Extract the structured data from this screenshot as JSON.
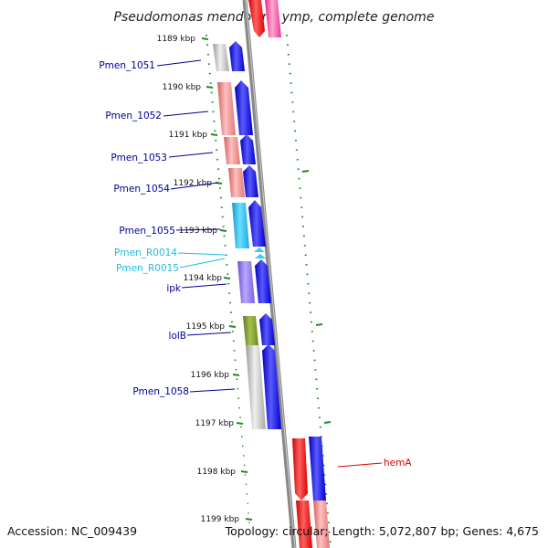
{
  "title": "Pseudomonas mendocina ymp, complete genome",
  "footer": {
    "accession": "Accession: NC_009439",
    "topology": "Topology: circular; Length: 5,072,807 bp; Genes: 4,675"
  },
  "colors": {
    "cds": "#0000ee",
    "rrna_trna": "#33ccff",
    "label_dark": "#000099",
    "label_light": "#22bbdd",
    "label_red": "#dd0000",
    "tick": "#228b22",
    "backbone": "#888888"
  },
  "ticks": [
    "1189 kbp",
    "1190 kbp",
    "1191 kbp",
    "1192 kbp",
    "1193 kbp",
    "1194 kbp",
    "1195 kbp",
    "1196 kbp",
    "1197 kbp",
    "1198 kbp",
    "1199 kbp"
  ],
  "gene_labels": [
    {
      "name": "Pmen_1051",
      "color": "#000099"
    },
    {
      "name": "Pmen_1052",
      "color": "#000099"
    },
    {
      "name": "Pmen_1053",
      "color": "#000099"
    },
    {
      "name": "Pmen_1054",
      "color": "#000099"
    },
    {
      "name": "Pmen_1055",
      "color": "#000099"
    },
    {
      "name": "Pmen_R0014",
      "color": "#22bbdd"
    },
    {
      "name": "Pmen_R0015",
      "color": "#22bbdd"
    },
    {
      "name": "ipk",
      "color": "#000099"
    },
    {
      "name": "lolB",
      "color": "#000099"
    },
    {
      "name": "Pmen_1058",
      "color": "#000099"
    },
    {
      "name": "hemA",
      "color": "#dd0000"
    }
  ]
}
